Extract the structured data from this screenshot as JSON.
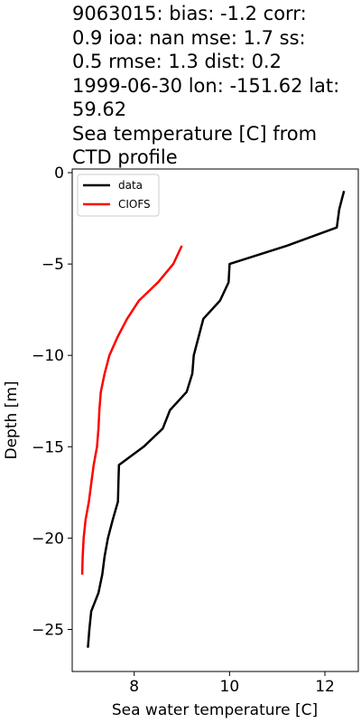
{
  "title": "9063015: bias: -1.2  corr:\n0.9  ioa: nan  mse: 1.7  ss:\n0.5  rmse: 1.3  dist: 0.2\n1999-06-30 lon: -151.62 lat:\n59.62\nSea temperature [C] from\nCTD profile",
  "chart_data": {
    "type": "line",
    "xlabel": "Sea water temperature [C]",
    "ylabel": "Depth [m]",
    "xlim": [
      6.7,
      12.7
    ],
    "ylim": [
      -27.3,
      0.2
    ],
    "xticks": [
      8,
      10,
      12
    ],
    "yticks": [
      0,
      -5,
      -10,
      -15,
      -20,
      -25
    ],
    "legend_position": "top-left",
    "grid": false,
    "series": [
      {
        "name": "data",
        "color": "#000000",
        "points": [
          [
            12.4,
            -1
          ],
          [
            12.3,
            -2
          ],
          [
            12.25,
            -3
          ],
          [
            11.2,
            -4
          ],
          [
            10,
            -5
          ],
          [
            9.98,
            -6
          ],
          [
            9.8,
            -7
          ],
          [
            9.45,
            -8
          ],
          [
            9.35,
            -9
          ],
          [
            9.25,
            -10
          ],
          [
            9.22,
            -11
          ],
          [
            9.1,
            -12
          ],
          [
            8.75,
            -13
          ],
          [
            8.6,
            -14
          ],
          [
            8.2,
            -15
          ],
          [
            7.68,
            -16
          ],
          [
            7.67,
            -17
          ],
          [
            7.66,
            -18
          ],
          [
            7.55,
            -19
          ],
          [
            7.45,
            -20
          ],
          [
            7.38,
            -21
          ],
          [
            7.33,
            -22
          ],
          [
            7.25,
            -23
          ],
          [
            7.1,
            -24
          ],
          [
            7.06,
            -25
          ],
          [
            7.03,
            -26
          ]
        ]
      },
      {
        "name": "CIOFS",
        "color": "#ff0000",
        "points": [
          [
            9.0,
            -4
          ],
          [
            8.82,
            -5
          ],
          [
            8.5,
            -6
          ],
          [
            8.1,
            -7
          ],
          [
            7.85,
            -8
          ],
          [
            7.65,
            -9
          ],
          [
            7.48,
            -10
          ],
          [
            7.38,
            -11
          ],
          [
            7.3,
            -12
          ],
          [
            7.27,
            -13
          ],
          [
            7.25,
            -14
          ],
          [
            7.22,
            -15
          ],
          [
            7.15,
            -16
          ],
          [
            7.1,
            -17
          ],
          [
            7.05,
            -18
          ],
          [
            6.98,
            -19
          ],
          [
            6.94,
            -20
          ],
          [
            6.92,
            -21
          ],
          [
            6.91,
            -22
          ]
        ]
      }
    ]
  }
}
